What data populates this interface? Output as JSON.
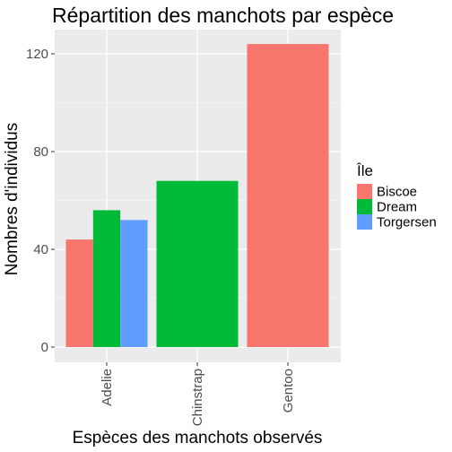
{
  "chart_data": {
    "type": "bar",
    "title": "Répartition des manchots par espèce",
    "xlabel": "Espèces des manchots observés",
    "ylabel": "Nombres d'individus",
    "categories": [
      "Adelie",
      "Chinstrap",
      "Gentoo"
    ],
    "ylim": [
      0,
      130
    ],
    "yticks": [
      0,
      40,
      80,
      120
    ],
    "legend": {
      "title": "Île",
      "placement": "right"
    },
    "grid": true,
    "series": [
      {
        "name": "Biscoe",
        "color": "#F8766D",
        "values": [
          44,
          null,
          124
        ]
      },
      {
        "name": "Dream",
        "color": "#00BA38",
        "values": [
          56,
          68,
          null
        ]
      },
      {
        "name": "Torgersen",
        "color": "#619CFF",
        "values": [
          52,
          null,
          null
        ]
      }
    ]
  }
}
